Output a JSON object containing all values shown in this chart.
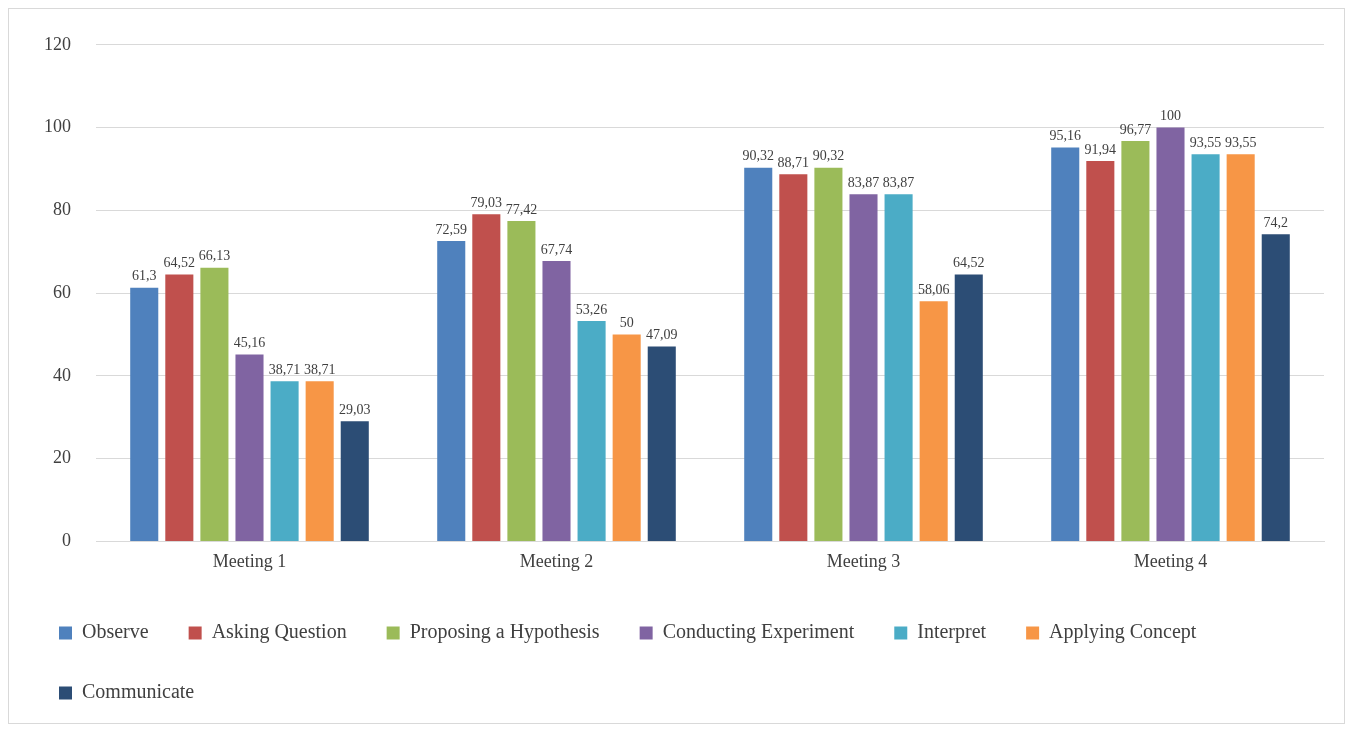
{
  "chart_data": {
    "type": "bar",
    "categories": [
      "Meeting 1",
      "Meeting 2",
      "Meeting 3",
      "Meeting 4"
    ],
    "series": [
      {
        "name": "Observe",
        "color": "#4f81bd",
        "values": [
          61.3,
          72.59,
          90.32,
          95.16
        ],
        "value_labels": [
          "61,3",
          "72,59",
          "90,32",
          "95,16"
        ]
      },
      {
        "name": "Asking Question",
        "color": "#c0504d",
        "values": [
          64.52,
          79.03,
          88.71,
          91.94
        ],
        "value_labels": [
          "64,52",
          "79,03",
          "88,71",
          "91,94"
        ]
      },
      {
        "name": "Proposing a Hypothesis",
        "color": "#9bbb59",
        "values": [
          66.13,
          77.42,
          90.32,
          96.77
        ],
        "value_labels": [
          "66,13",
          "77,42",
          "90,32",
          "96,77"
        ]
      },
      {
        "name": "Conducting Experiment",
        "color": "#8064a2",
        "values": [
          45.16,
          67.74,
          83.87,
          100
        ],
        "value_labels": [
          "45,16",
          "67,74",
          "83,87",
          "100"
        ]
      },
      {
        "name": "Interpret",
        "color": "#4bacc6",
        "values": [
          38.71,
          53.26,
          83.87,
          93.55
        ],
        "value_labels": [
          "38,71",
          "53,26",
          "83,87",
          "93,55"
        ]
      },
      {
        "name": "Applying Concept",
        "color": "#f79646",
        "values": [
          38.71,
          50,
          58.06,
          93.55
        ],
        "value_labels": [
          "38,71",
          "50",
          "58,06",
          "93,55"
        ]
      },
      {
        "name": "Communicate",
        "color": "#2c4d75",
        "values": [
          29.03,
          47.09,
          64.52,
          74.2
        ],
        "value_labels": [
          "29,03",
          "47,09",
          "64,52",
          "74,2"
        ]
      }
    ],
    "ylim": [
      0,
      120
    ],
    "yticks": [
      0,
      20,
      40,
      60,
      80,
      100,
      120
    ],
    "grid": "y",
    "legend": "bottom"
  }
}
